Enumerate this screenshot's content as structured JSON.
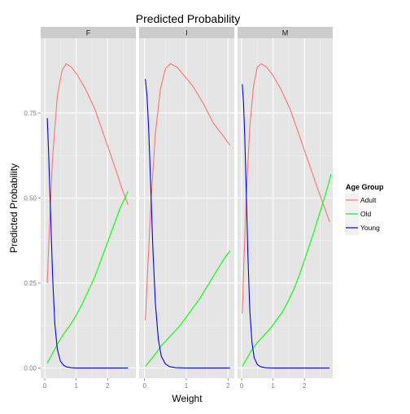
{
  "chart_data": {
    "type": "line",
    "title": "Predicted Probability",
    "xlabel": "Weight",
    "ylabel": "Predicted Probability",
    "ylim": [
      -0.03,
      0.97
    ],
    "y_ticks": [
      0.0,
      0.25,
      0.5,
      0.75
    ],
    "y_tick_labels": [
      "0.00",
      "0.25",
      "0.50",
      "0.75"
    ],
    "x_ticks": [
      0,
      1,
      2
    ],
    "x_tick_labels": [
      "0",
      "1",
      "2"
    ],
    "grid": true,
    "legend": {
      "title": "Age Group",
      "position": "right",
      "entries": [
        "Adult",
        "Old",
        "Young"
      ]
    },
    "colors": {
      "Adult": "#F8766D",
      "Old": "#00FF00",
      "Young": "#0000FF",
      "panel_bg": "#E5E5E5",
      "strip_bg": "#CCCCCC",
      "grid_major": "#FFFFFF",
      "grid_minor": "#F2F2F2"
    },
    "panels": [
      {
        "label": "F",
        "xlim": [
          -0.13,
          2.9
        ],
        "series": [
          {
            "name": "Adult",
            "x": [
              0.08,
              0.15,
              0.25,
              0.4,
              0.55,
              0.68,
              0.85,
              1.05,
              1.3,
              1.6,
              1.9,
              2.2,
              2.45,
              2.65
            ],
            "y": [
              0.25,
              0.42,
              0.62,
              0.8,
              0.875,
              0.895,
              0.885,
              0.86,
              0.82,
              0.76,
              0.68,
              0.6,
              0.53,
              0.48
            ]
          },
          {
            "name": "Old",
            "x": [
              0.08,
              0.2,
              0.4,
              0.6,
              0.8,
              1.0,
              1.2,
              1.4,
              1.6,
              1.8,
              2.0,
              2.2,
              2.4,
              2.55,
              2.65
            ],
            "y": [
              0.015,
              0.035,
              0.07,
              0.1,
              0.125,
              0.155,
              0.19,
              0.23,
              0.27,
              0.32,
              0.37,
              0.42,
              0.47,
              0.5,
              0.52
            ]
          },
          {
            "name": "Young",
            "x": [
              0.08,
              0.12,
              0.18,
              0.25,
              0.32,
              0.4,
              0.5,
              0.6,
              0.7,
              0.85,
              1.0,
              1.3,
              2.0,
              2.65
            ],
            "y": [
              0.735,
              0.64,
              0.47,
              0.27,
              0.13,
              0.055,
              0.02,
              0.008,
              0.003,
              0.001,
              0.0,
              0.0,
              0.0,
              0.0
            ]
          }
        ]
      },
      {
        "label": "I",
        "xlim": [
          -0.13,
          2.15
        ],
        "series": [
          {
            "name": "Adult",
            "x": [
              0.02,
              0.08,
              0.16,
              0.26,
              0.38,
              0.5,
              0.62,
              0.78,
              0.95,
              1.15,
              1.4,
              1.65,
              1.9,
              2.05
            ],
            "y": [
              0.14,
              0.3,
              0.5,
              0.69,
              0.82,
              0.88,
              0.895,
              0.885,
              0.86,
              0.83,
              0.78,
              0.72,
              0.68,
              0.655
            ]
          },
          {
            "name": "Old",
            "x": [
              0.02,
              0.12,
              0.25,
              0.4,
              0.55,
              0.7,
              0.85,
              1.0,
              1.15,
              1.3,
              1.45,
              1.6,
              1.75,
              1.9,
              2.05
            ],
            "y": [
              0.005,
              0.02,
              0.04,
              0.065,
              0.085,
              0.105,
              0.125,
              0.15,
              0.175,
              0.2,
              0.23,
              0.26,
              0.29,
              0.32,
              0.345
            ]
          },
          {
            "name": "Young",
            "x": [
              0.02,
              0.06,
              0.1,
              0.15,
              0.2,
              0.26,
              0.33,
              0.4,
              0.5,
              0.6,
              0.75,
              1.0,
              1.5,
              2.05
            ],
            "y": [
              0.85,
              0.8,
              0.7,
              0.53,
              0.35,
              0.19,
              0.085,
              0.035,
              0.012,
              0.004,
              0.001,
              0.0,
              0.0,
              0.0
            ]
          }
        ]
      },
      {
        "label": "M",
        "xlim": [
          -0.13,
          2.9
        ],
        "series": [
          {
            "name": "Adult",
            "x": [
              0.02,
              0.08,
              0.16,
              0.26,
              0.38,
              0.5,
              0.62,
              0.8,
              1.0,
              1.25,
              1.55,
              1.85,
              2.15,
              2.45,
              2.8
            ],
            "y": [
              0.16,
              0.33,
              0.53,
              0.71,
              0.83,
              0.885,
              0.895,
              0.885,
              0.86,
              0.82,
              0.76,
              0.68,
              0.6,
              0.52,
              0.43
            ]
          },
          {
            "name": "Old",
            "x": [
              0.02,
              0.15,
              0.3,
              0.5,
              0.7,
              0.9,
              1.1,
              1.3,
              1.5,
              1.7,
              1.9,
              2.1,
              2.3,
              2.5,
              2.7,
              2.85
            ],
            "y": [
              0.005,
              0.025,
              0.05,
              0.075,
              0.095,
              0.115,
              0.14,
              0.165,
              0.2,
              0.24,
              0.29,
              0.345,
              0.4,
              0.46,
              0.52,
              0.57
            ]
          },
          {
            "name": "Young",
            "x": [
              0.02,
              0.06,
              0.1,
              0.15,
              0.2,
              0.26,
              0.33,
              0.4,
              0.5,
              0.6,
              0.75,
              1.0,
              1.5,
              2.0,
              2.8
            ],
            "y": [
              0.835,
              0.78,
              0.68,
              0.51,
              0.33,
              0.17,
              0.075,
              0.03,
              0.01,
              0.004,
              0.001,
              0.0,
              0.0,
              0.0,
              0.0
            ]
          }
        ]
      }
    ]
  }
}
